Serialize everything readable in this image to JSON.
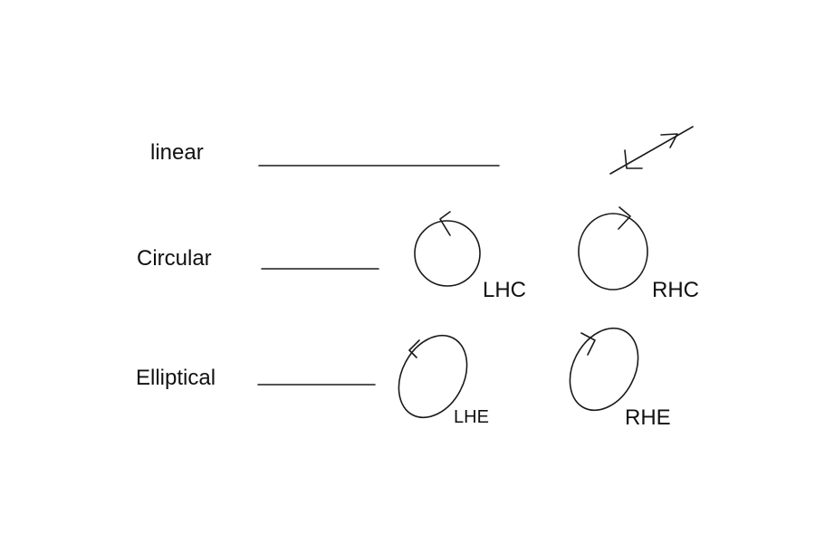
{
  "rows": {
    "linear": {
      "label": "linear"
    },
    "circular": {
      "label": "Circular",
      "left_tag": "LHC",
      "right_tag": "RHC"
    },
    "elliptical": {
      "label": "Elliptical",
      "left_tag": "LHE",
      "right_tag": "RHE"
    }
  },
  "colors": {
    "stroke": "#1a1a1a",
    "background": "#ffffff"
  },
  "icons": {
    "linear": "diagonal-line-with-arrowheads",
    "circular_left": "circle-counterclockwise-arrow",
    "circular_right": "circle-clockwise-arrow",
    "elliptical_left": "ellipse-counterclockwise-arrow",
    "elliptical_right": "ellipse-clockwise-arrow"
  }
}
